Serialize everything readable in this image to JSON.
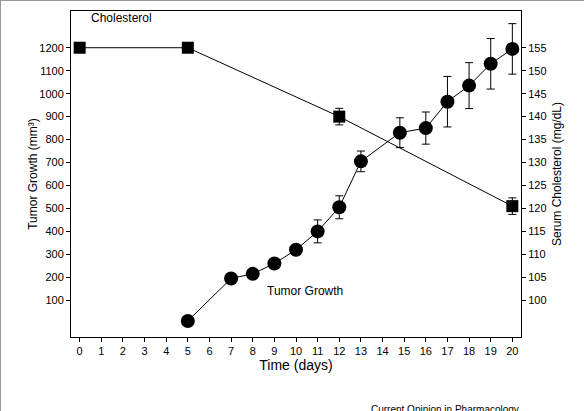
{
  "chart_data": {
    "type": "line",
    "x_label": "Time (days)",
    "y_label": "Tumor Growth (mm³)",
    "y2_label": "Serum Cholesterol (mg/dL)",
    "annotations": [
      "Cholesterol",
      "Tumor Growth"
    ],
    "source": "Current Opinion in Pharmacology",
    "xlim": [
      -0.4,
      20.4
    ],
    "xticks": [
      0,
      1,
      2,
      3,
      4,
      5,
      6,
      7,
      8,
      9,
      10,
      11,
      12,
      13,
      14,
      15,
      16,
      17,
      18,
      19,
      20
    ],
    "ylim": [
      -60,
      1360
    ],
    "yticks": [
      100,
      200,
      300,
      400,
      500,
      600,
      700,
      800,
      900,
      1000,
      1100,
      1200
    ],
    "y2lim": [
      92,
      163
    ],
    "y2ticks": [
      100,
      105,
      110,
      115,
      120,
      125,
      130,
      135,
      140,
      145,
      150,
      155
    ],
    "grid": false,
    "series": [
      {
        "name": "Cholesterol",
        "color": "#000000",
        "marker": "square",
        "axis": "y2",
        "x": [
          0,
          5,
          12,
          20
        ],
        "values": [
          155,
          155,
          140,
          120.5
        ],
        "errors": [
          0,
          0,
          1.8,
          1.8
        ]
      },
      {
        "name": "Tumor Growth",
        "color": "#000000",
        "marker": "circle",
        "axis": "y",
        "x": [
          5,
          7,
          8,
          9,
          10,
          11,
          12,
          13,
          14.8,
          16,
          17,
          18,
          19,
          20
        ],
        "values": [
          10,
          195,
          215,
          260,
          320,
          400,
          505,
          705,
          830,
          850,
          965,
          1035,
          1130,
          1195
        ],
        "errors": [
          0,
          0,
          0,
          0,
          0,
          50,
          50,
          45,
          65,
          70,
          110,
          100,
          110,
          110
        ]
      }
    ]
  }
}
